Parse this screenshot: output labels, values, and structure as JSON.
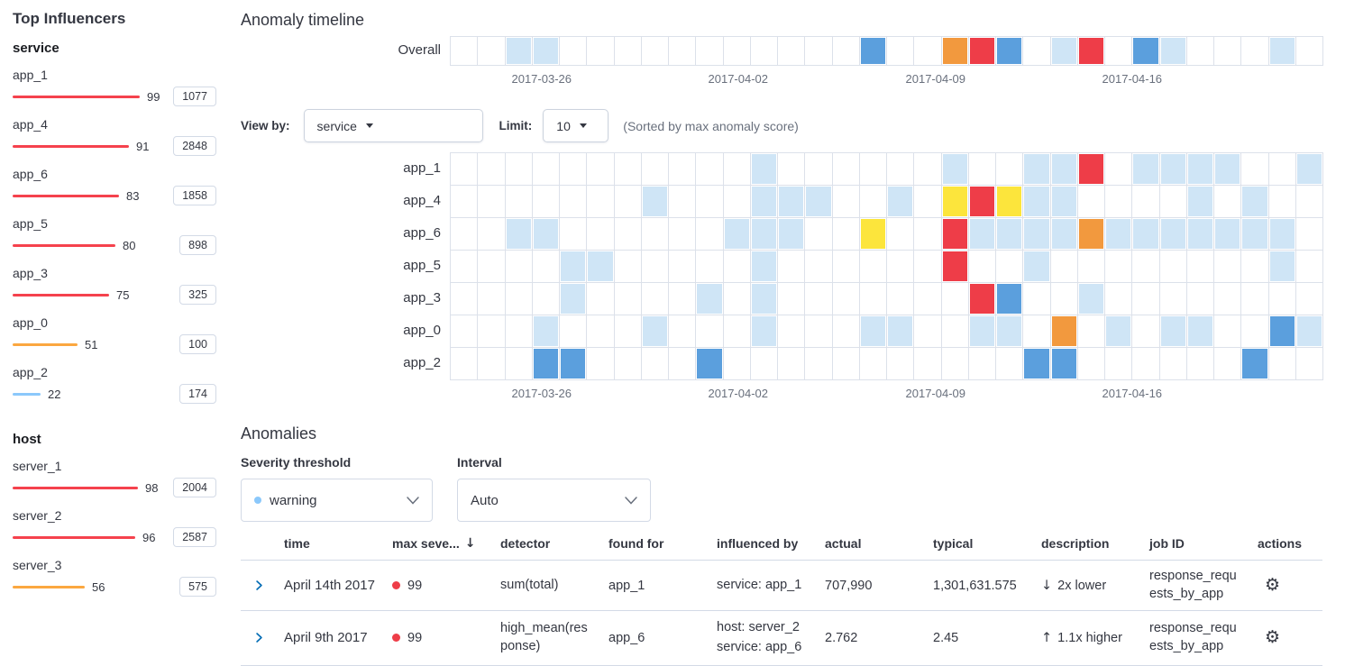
{
  "colors": {
    "low": "#cfe5f6",
    "warning": "#5b9fdd",
    "minor": "#fce53c",
    "major": "#f2993e",
    "critical": "#ee3d48",
    "bar_critical": "#f5424d",
    "bar_major": "#fba740",
    "bar_warning": "#8bc8fb",
    "link": "#006bb4"
  },
  "icons": {
    "caret_down": "▾",
    "sort_desc": "↓",
    "arrow_down": "↓",
    "arrow_up": "↑",
    "gear": "⚙"
  },
  "influencers": {
    "title": "Top Influencers",
    "groups": [
      {
        "name": "service",
        "items": [
          {
            "label": "app_1",
            "score": 99,
            "badge": "1077",
            "severity": "critical"
          },
          {
            "label": "app_4",
            "score": 91,
            "badge": "2848",
            "severity": "critical"
          },
          {
            "label": "app_6",
            "score": 83,
            "badge": "1858",
            "severity": "critical"
          },
          {
            "label": "app_5",
            "score": 80,
            "badge": "898",
            "severity": "critical"
          },
          {
            "label": "app_3",
            "score": 75,
            "badge": "325",
            "severity": "critical"
          },
          {
            "label": "app_0",
            "score": 51,
            "badge": "100",
            "severity": "major"
          },
          {
            "label": "app_2",
            "score": 22,
            "badge": "174",
            "severity": "warning"
          }
        ]
      },
      {
        "name": "host",
        "items": [
          {
            "label": "server_1",
            "score": 98,
            "badge": "2004",
            "severity": "critical"
          },
          {
            "label": "server_2",
            "score": 96,
            "badge": "2587",
            "severity": "critical"
          },
          {
            "label": "server_3",
            "score": 56,
            "badge": "575",
            "severity": "major"
          }
        ]
      }
    ]
  },
  "timeline": {
    "title": "Anomaly timeline",
    "overall_label": "Overall",
    "controls": {
      "view_by_label": "View by:",
      "view_by_value": "service",
      "limit_label": "Limit:",
      "limit_value": "10",
      "note": "(Sorted by max anomaly score)"
    },
    "num_cells": 32,
    "x_labels": [
      {
        "text": "2017-03-26",
        "pct": 10.5
      },
      {
        "text": "2017-04-02",
        "pct": 33.0
      },
      {
        "text": "2017-04-09",
        "pct": 55.6
      },
      {
        "text": "2017-04-16",
        "pct": 78.1
      }
    ],
    "overall_lane": {
      "label": "Overall",
      "cells": [
        [
          2,
          "low"
        ],
        [
          3,
          "low"
        ],
        [
          15,
          "warning"
        ],
        [
          18,
          "major"
        ],
        [
          19,
          "critical"
        ],
        [
          20,
          "warning"
        ],
        [
          22,
          "low"
        ],
        [
          23,
          "critical"
        ],
        [
          25,
          "warning"
        ],
        [
          26,
          "low"
        ],
        [
          30,
          "low"
        ]
      ]
    },
    "lanes": [
      {
        "label": "app_1",
        "cells": [
          [
            11,
            "low"
          ],
          [
            18,
            "low"
          ],
          [
            21,
            "low"
          ],
          [
            22,
            "low"
          ],
          [
            23,
            "critical"
          ],
          [
            25,
            "low"
          ],
          [
            26,
            "low"
          ],
          [
            27,
            "low"
          ],
          [
            28,
            "low"
          ],
          [
            31,
            "low"
          ]
        ]
      },
      {
        "label": "app_4",
        "cells": [
          [
            7,
            "low"
          ],
          [
            11,
            "low"
          ],
          [
            12,
            "low"
          ],
          [
            13,
            "low"
          ],
          [
            16,
            "low"
          ],
          [
            18,
            "minor"
          ],
          [
            19,
            "critical"
          ],
          [
            20,
            "minor"
          ],
          [
            21,
            "low"
          ],
          [
            22,
            "low"
          ],
          [
            27,
            "low"
          ],
          [
            29,
            "low"
          ]
        ]
      },
      {
        "label": "app_6",
        "cells": [
          [
            2,
            "low"
          ],
          [
            3,
            "low"
          ],
          [
            10,
            "low"
          ],
          [
            11,
            "low"
          ],
          [
            12,
            "low"
          ],
          [
            15,
            "minor"
          ],
          [
            18,
            "critical"
          ],
          [
            19,
            "low"
          ],
          [
            20,
            "low"
          ],
          [
            21,
            "low"
          ],
          [
            22,
            "low"
          ],
          [
            23,
            "major"
          ],
          [
            24,
            "low"
          ],
          [
            25,
            "low"
          ],
          [
            26,
            "low"
          ],
          [
            27,
            "low"
          ],
          [
            28,
            "low"
          ],
          [
            29,
            "low"
          ],
          [
            30,
            "low"
          ]
        ]
      },
      {
        "label": "app_5",
        "cells": [
          [
            4,
            "low"
          ],
          [
            5,
            "low"
          ],
          [
            11,
            "low"
          ],
          [
            18,
            "critical"
          ],
          [
            21,
            "low"
          ],
          [
            30,
            "low"
          ]
        ]
      },
      {
        "label": "app_3",
        "cells": [
          [
            4,
            "low"
          ],
          [
            9,
            "low"
          ],
          [
            11,
            "low"
          ],
          [
            19,
            "critical"
          ],
          [
            20,
            "warning"
          ],
          [
            23,
            "low"
          ]
        ]
      },
      {
        "label": "app_0",
        "cells": [
          [
            3,
            "low"
          ],
          [
            7,
            "low"
          ],
          [
            11,
            "low"
          ],
          [
            15,
            "low"
          ],
          [
            16,
            "low"
          ],
          [
            19,
            "low"
          ],
          [
            20,
            "low"
          ],
          [
            22,
            "major"
          ],
          [
            24,
            "low"
          ],
          [
            26,
            "low"
          ],
          [
            27,
            "low"
          ],
          [
            30,
            "warning"
          ],
          [
            31,
            "low"
          ]
        ]
      },
      {
        "label": "app_2",
        "cells": [
          [
            3,
            "warning"
          ],
          [
            4,
            "warning"
          ],
          [
            9,
            "warning"
          ],
          [
            21,
            "warning"
          ],
          [
            22,
            "warning"
          ],
          [
            29,
            "warning"
          ]
        ]
      }
    ]
  },
  "anomalies": {
    "title": "Anomalies",
    "severity_label": "Severity threshold",
    "severity_value": "warning",
    "interval_label": "Interval",
    "interval_value": "Auto",
    "table": {
      "headers": [
        "time",
        "max seve...",
        "detector",
        "found for",
        "influenced by",
        "actual",
        "typical",
        "description",
        "job ID",
        "actions"
      ],
      "sort_header_index": 1,
      "rows": [
        {
          "time": "April 14th 2017",
          "severity": "99",
          "detector": "sum(total)",
          "found_for": "app_1",
          "influenced_by": [
            "service: app_1"
          ],
          "actual": "707,990",
          "typical": "1,301,631.575",
          "direction": "down",
          "description": "2x lower",
          "job_id": "response_requests_by_app"
        },
        {
          "time": "April 9th 2017",
          "severity": "99",
          "detector": "high_mean(response)",
          "found_for": "app_6",
          "influenced_by": [
            "host: server_2",
            "service: app_6"
          ],
          "actual": "2.762",
          "typical": "2.45",
          "direction": "up",
          "description": "1.1x higher",
          "job_id": "response_requests_by_app"
        }
      ]
    }
  }
}
